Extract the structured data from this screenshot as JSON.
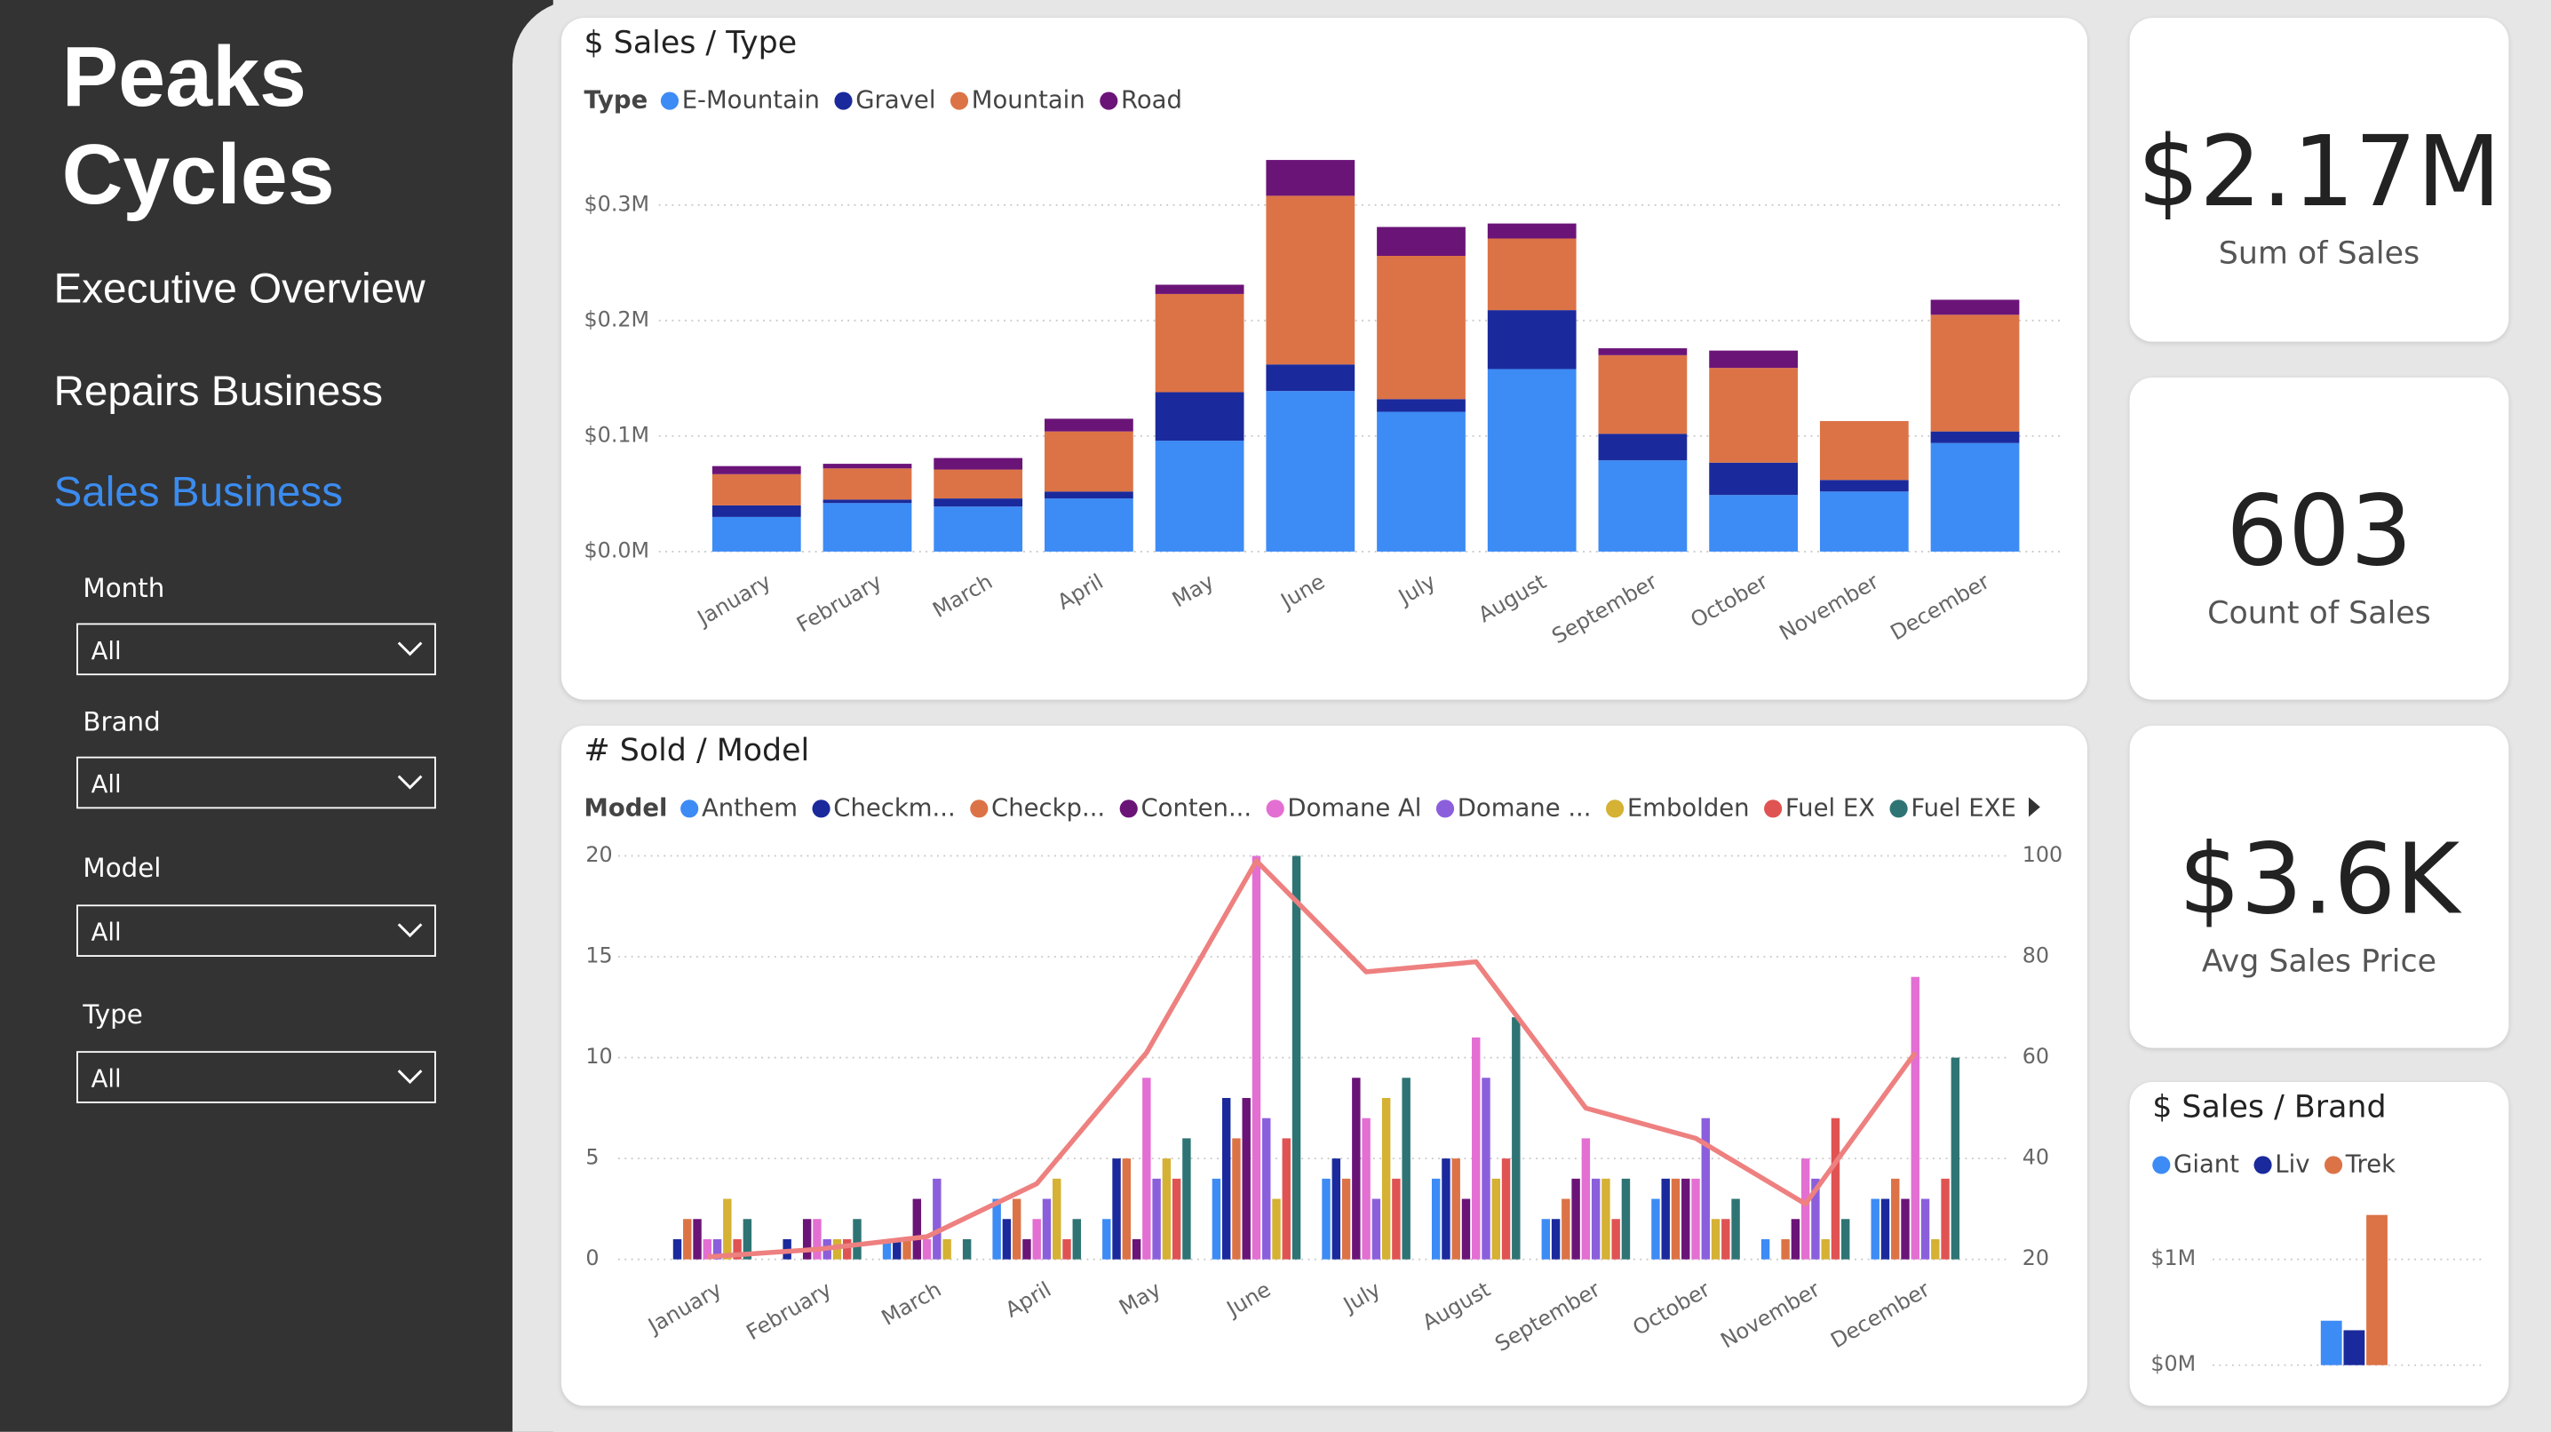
{
  "sidebar": {
    "title": "Peaks Cycles",
    "nav": [
      "Executive Overview",
      "Repairs Business",
      "Sales Business"
    ],
    "filters": [
      {
        "label": "Month",
        "value": "All"
      },
      {
        "label": "Brand",
        "value": "All"
      },
      {
        "label": "Model",
        "value": "All"
      },
      {
        "label": "Type",
        "value": "All"
      }
    ]
  },
  "kpis": [
    {
      "value": "$2.17M",
      "label": "Sum of Sales"
    },
    {
      "value": "603",
      "label": "Count of Sales"
    },
    {
      "value": "$3.6K",
      "label": "Avg Sales Price"
    }
  ],
  "chart_data": [
    {
      "type": "bar",
      "stacked": true,
      "title": "$ Sales / Type",
      "legend_title": "Type",
      "categories": [
        "January",
        "February",
        "March",
        "April",
        "May",
        "June",
        "July",
        "August",
        "September",
        "October",
        "November",
        "December"
      ],
      "series": [
        {
          "name": "E-Mountain",
          "color": "#3d8bf5",
          "values": [
            0.03,
            0.042,
            0.039,
            0.046,
            0.096,
            0.139,
            0.121,
            0.158,
            0.079,
            0.049,
            0.052,
            0.094
          ]
        },
        {
          "name": "Gravel",
          "color": "#1a2a9c",
          "values": [
            0.01,
            0.003,
            0.007,
            0.006,
            0.042,
            0.023,
            0.011,
            0.051,
            0.023,
            0.028,
            0.01,
            0.01
          ]
        },
        {
          "name": "Mountain",
          "color": "#dc7346",
          "values": [
            0.027,
            0.027,
            0.025,
            0.052,
            0.085,
            0.146,
            0.124,
            0.062,
            0.068,
            0.082,
            0.051,
            0.101
          ]
        },
        {
          "name": "Road",
          "color": "#6b1478",
          "values": [
            0.007,
            0.004,
            0.01,
            0.011,
            0.008,
            0.031,
            0.025,
            0.013,
            0.006,
            0.015,
            0,
            0.013
          ]
        }
      ],
      "ylim": [
        0,
        0.35
      ],
      "yticks": [
        {
          "value": 0,
          "label": "$0.0M"
        },
        {
          "value": 0.1,
          "label": "$0.1M"
        },
        {
          "value": 0.2,
          "label": "$0.2M"
        },
        {
          "value": 0.3,
          "label": "$0.3M"
        }
      ],
      "grid": true
    },
    {
      "type": "combo",
      "title": "# Sold / Model",
      "legend_title": "Model",
      "categories": [
        "January",
        "February",
        "March",
        "April",
        "May",
        "June",
        "July",
        "August",
        "September",
        "October",
        "November",
        "December"
      ],
      "series": [
        {
          "name": "Anthem",
          "color": "#3d8bf5",
          "values": [
            0,
            0,
            1,
            3,
            2,
            4,
            4,
            4,
            2,
            3,
            1,
            3
          ]
        },
        {
          "name": "Checkm...",
          "color": "#1a2a9c",
          "values": [
            1,
            1,
            1,
            2,
            5,
            8,
            5,
            5,
            2,
            4,
            0,
            3
          ]
        },
        {
          "name": "Checkp...",
          "color": "#dc7346",
          "values": [
            2,
            0,
            1,
            3,
            5,
            6,
            4,
            5,
            3,
            4,
            1,
            4
          ]
        },
        {
          "name": "Conten...",
          "color": "#6b1478",
          "values": [
            2,
            2,
            3,
            1,
            1,
            8,
            9,
            3,
            4,
            4,
            2,
            3
          ]
        },
        {
          "name": "Domane Al",
          "color": "#e36fd2",
          "values": [
            1,
            2,
            1,
            2,
            9,
            20,
            7,
            11,
            6,
            4,
            5,
            14
          ]
        },
        {
          "name": "Domane ...",
          "color": "#8b5fdc",
          "values": [
            1,
            1,
            4,
            3,
            4,
            7,
            3,
            9,
            4,
            7,
            4,
            3
          ]
        },
        {
          "name": "Embolden",
          "color": "#d5b134",
          "values": [
            3,
            1,
            1,
            4,
            5,
            3,
            8,
            4,
            4,
            2,
            1,
            1
          ]
        },
        {
          "name": "Fuel EX",
          "color": "#e05353",
          "values": [
            1,
            1,
            0,
            1,
            4,
            6,
            4,
            5,
            2,
            2,
            7,
            4
          ]
        },
        {
          "name": "Fuel EXE",
          "color": "#2f7474",
          "values": [
            2,
            2,
            1,
            2,
            6,
            20,
            9,
            12,
            4,
            3,
            2,
            10
          ]
        },
        {
          "type": "line",
          "axis": "y2",
          "color": "#ee8080",
          "values": [
            20.5,
            22,
            24.5,
            35,
            61,
            99,
            77,
            79,
            50,
            44,
            31,
            61
          ]
        }
      ],
      "ylim": [
        0,
        20
      ],
      "yticks": [
        0,
        5,
        10,
        15,
        20
      ],
      "y2lim": [
        20,
        100
      ],
      "y2ticks": [
        20,
        40,
        60,
        80,
        100
      ],
      "grid": true
    },
    {
      "type": "bar",
      "stacked": false,
      "title": "$ Sales / Brand",
      "categories": [
        null
      ],
      "series": [
        {
          "name": "Giant",
          "color": "#3d8bf5",
          "values": [
            0.42
          ]
        },
        {
          "name": "Liv",
          "color": "#1a2a9c",
          "values": [
            0.33
          ]
        },
        {
          "name": "Trek",
          "color": "#dc7346",
          "values": [
            1.42
          ]
        }
      ],
      "ylim": [
        0,
        1.7
      ],
      "yticks": [
        {
          "value": 0,
          "label": "$0M"
        },
        {
          "value": 1,
          "label": "$1M"
        }
      ],
      "grid": true
    }
  ]
}
